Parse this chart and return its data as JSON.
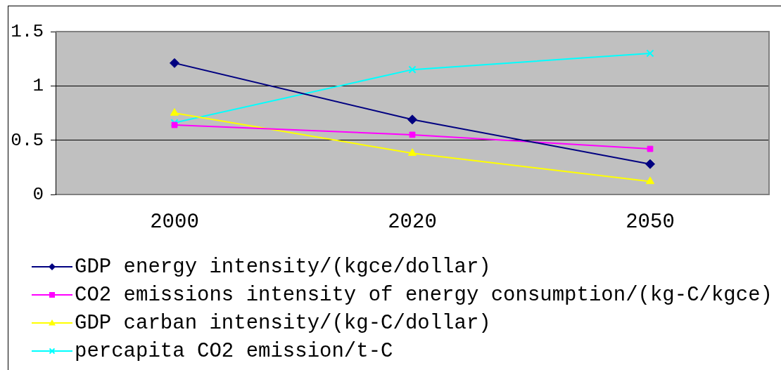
{
  "chart_data": {
    "type": "line",
    "categories": [
      "2000",
      "2020",
      "2050"
    ],
    "series": [
      {
        "name": "GDP energy intensity/(kgce/dollar)",
        "color": "#000080",
        "marker": "diamond",
        "values": [
          1.21,
          0.69,
          0.28
        ]
      },
      {
        "name": "CO2 emissions intensity of energy consumption/(kg-C/kgce)",
        "color": "#ff00ff",
        "marker": "square",
        "values": [
          0.64,
          0.55,
          0.42
        ]
      },
      {
        "name": "GDP carban intensity/(kg-C/dollar)",
        "color": "#ffff00",
        "marker": "triangle",
        "values": [
          0.75,
          0.38,
          0.12
        ]
      },
      {
        "name": "percapita CO2 emission/t-C",
        "color": "#00ffff",
        "marker": "cross",
        "values": [
          0.66,
          1.15,
          1.3
        ]
      }
    ],
    "ylim": [
      0,
      1.5
    ],
    "yticks": [
      0,
      0.5,
      1,
      1.5
    ],
    "grid": "y",
    "legend": "bottom left",
    "line_style": "solid"
  }
}
